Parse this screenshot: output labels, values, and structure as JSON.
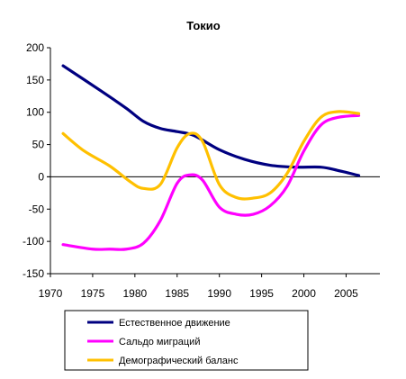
{
  "chart_data": {
    "type": "line",
    "title": "Токио",
    "xlabel": "",
    "ylabel": "",
    "xlim": [
      1970,
      2009
    ],
    "ylim": [
      -150,
      200
    ],
    "x_ticks": [
      1970,
      1975,
      1980,
      1985,
      1990,
      1995,
      2000,
      2005
    ],
    "y_ticks": [
      -150,
      -100,
      -50,
      0,
      50,
      100,
      150,
      200
    ],
    "grid": false,
    "legend_position": "bottom",
    "series": [
      {
        "name": "Естественное движение",
        "color": "#000080",
        "x": [
          1971.5,
          1976,
          1979,
          1981,
          1983,
          1985,
          1987,
          1990,
          1993,
          1996,
          1999,
          2002,
          2004,
          2006.5
        ],
        "y": [
          172,
          133,
          106,
          86,
          75,
          70,
          64,
          42,
          27,
          18,
          15,
          15,
          10,
          2
        ]
      },
      {
        "name": "Сальдо миграций",
        "color": "#ff00ff",
        "x": [
          1971.5,
          1975,
          1977,
          1979,
          1981,
          1983,
          1985,
          1986.5,
          1988,
          1990,
          1992,
          1994,
          1996,
          1998,
          2000,
          2002,
          2004,
          2006.5
        ],
        "y": [
          -105,
          -112,
          -112,
          -112,
          -103,
          -68,
          -10,
          3,
          -5,
          -47,
          -58,
          -58,
          -45,
          -15,
          40,
          80,
          92,
          95
        ]
      },
      {
        "name": "Демографический баланс",
        "color": "#ffc000",
        "x": [
          1971.5,
          1974,
          1977,
          1979.5,
          1981,
          1983,
          1985,
          1986.5,
          1988,
          1990,
          1992,
          1994,
          1996,
          1998,
          2000,
          2002,
          2004,
          2006.5
        ],
        "y": [
          67,
          40,
          17,
          -8,
          -18,
          -12,
          45,
          67,
          55,
          -12,
          -32,
          -33,
          -25,
          5,
          55,
          92,
          101,
          98
        ]
      }
    ]
  }
}
